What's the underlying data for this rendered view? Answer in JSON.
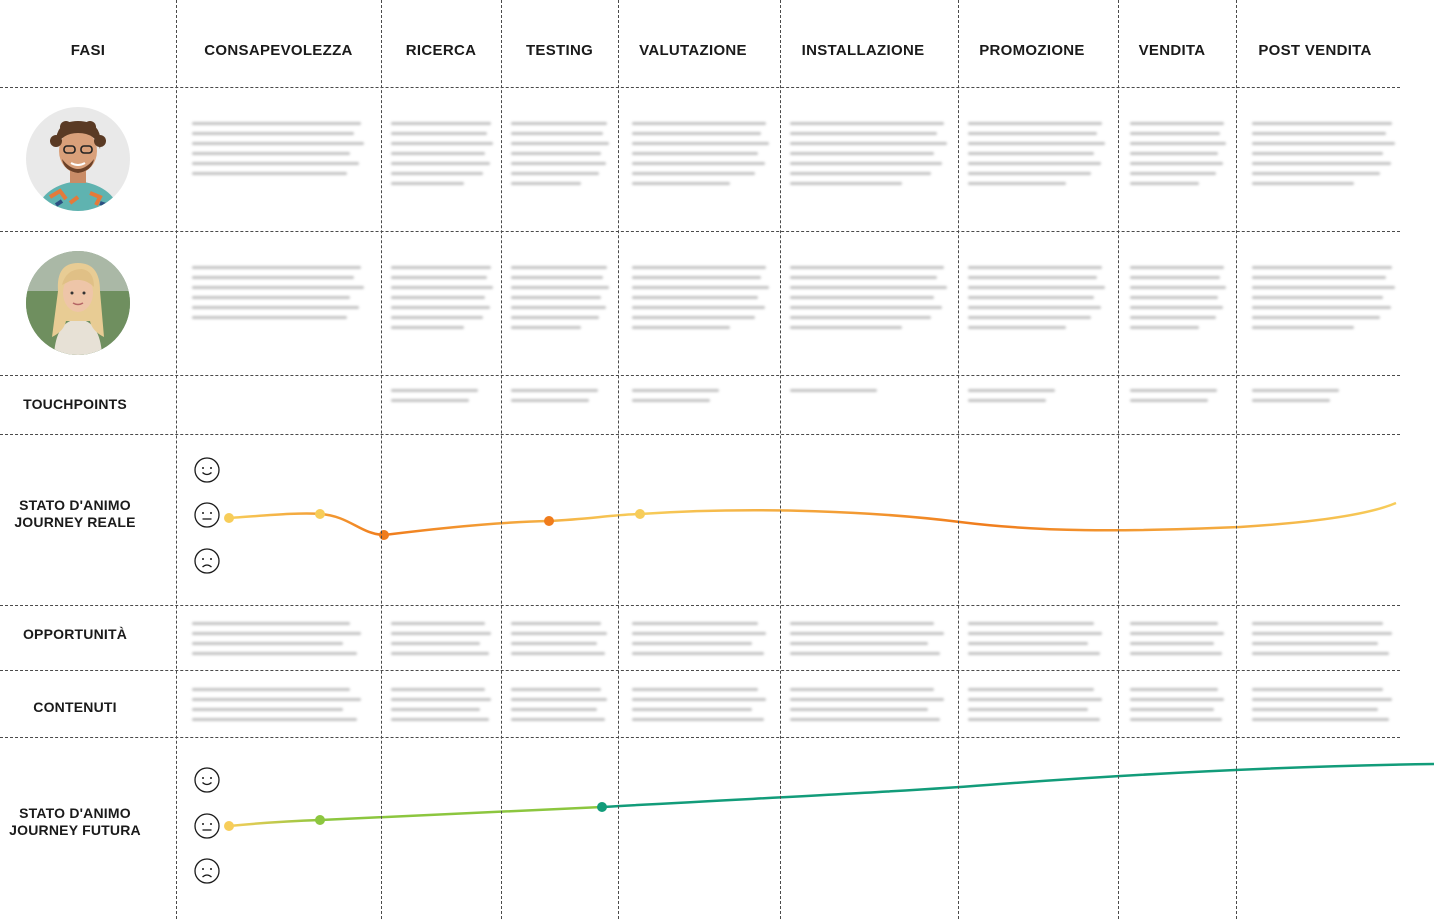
{
  "header": {
    "phases_label": "FASI",
    "phases": [
      "CONSAPEVOLEZZA",
      "RICERCA",
      "TESTING",
      "VALUTAZIONE",
      "INSTALLAZIONE",
      "PROMOZIONE",
      "VENDITA",
      "POST VENDITA"
    ]
  },
  "rows": {
    "touchpoints": "TOUCHPOINTS",
    "mood_current_line1": "STATO D'ANIMO",
    "mood_current_line2": "JOURNEY REALE",
    "opportunities": "OPPORTUNITÀ",
    "contents": "CONTENUTI",
    "mood_future_line1": "STATO D'ANIMO",
    "mood_future_line2": "JOURNEY FUTURA"
  },
  "personas": [
    {
      "icon": "persona-male-avatar"
    },
    {
      "icon": "persona-female-avatar"
    }
  ],
  "mood_icons": [
    "happy-face-icon",
    "neutral-face-icon",
    "sad-face-icon"
  ],
  "colors": {
    "grid": "#4a4a4a",
    "mood_yellow": "#f7cd5a",
    "mood_orange": "#f07c1c",
    "mood_lightgreen": "#8cc63f",
    "mood_green": "#129c7a"
  }
}
